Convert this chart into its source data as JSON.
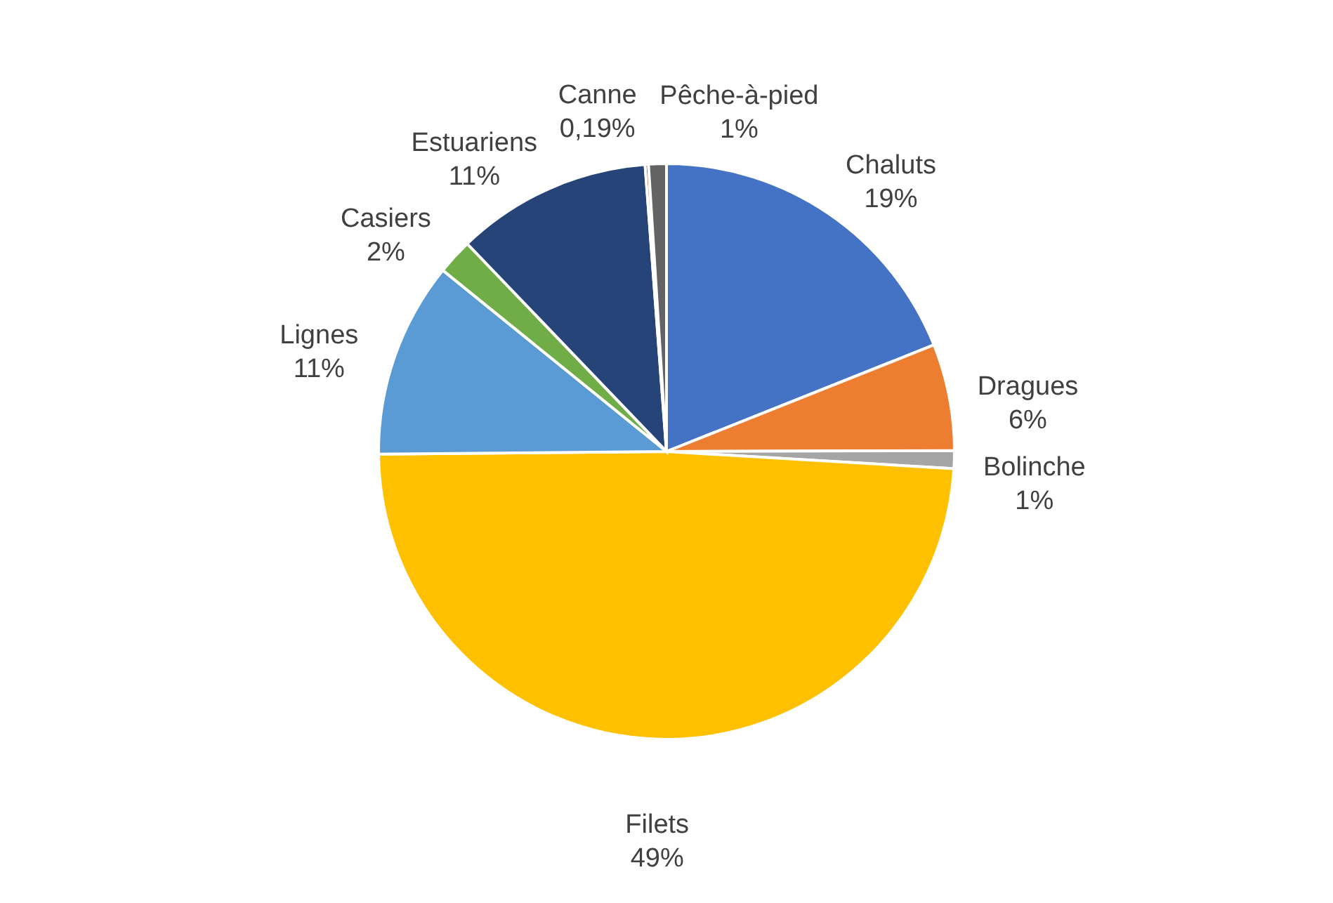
{
  "chart_data": {
    "type": "pie",
    "categories": [
      "Chaluts",
      "Dragues",
      "Bolinche",
      "Filets",
      "Lignes",
      "Casiers",
      "Estuariens",
      "Canne",
      "Pêche-à-pied"
    ],
    "values": [
      19,
      6,
      1,
      49,
      11,
      2,
      11,
      0.19,
      1
    ],
    "value_labels": [
      "19%",
      "6%",
      "1%",
      "49%",
      "11%",
      "2%",
      "11%",
      "0,19%",
      "1%"
    ],
    "colors": [
      "#4472c4",
      "#ed7d31",
      "#a5a5a5",
      "#ffc000",
      "#5b9bd5",
      "#70ad47",
      "#264478",
      "#9e480e",
      "#636363"
    ]
  }
}
